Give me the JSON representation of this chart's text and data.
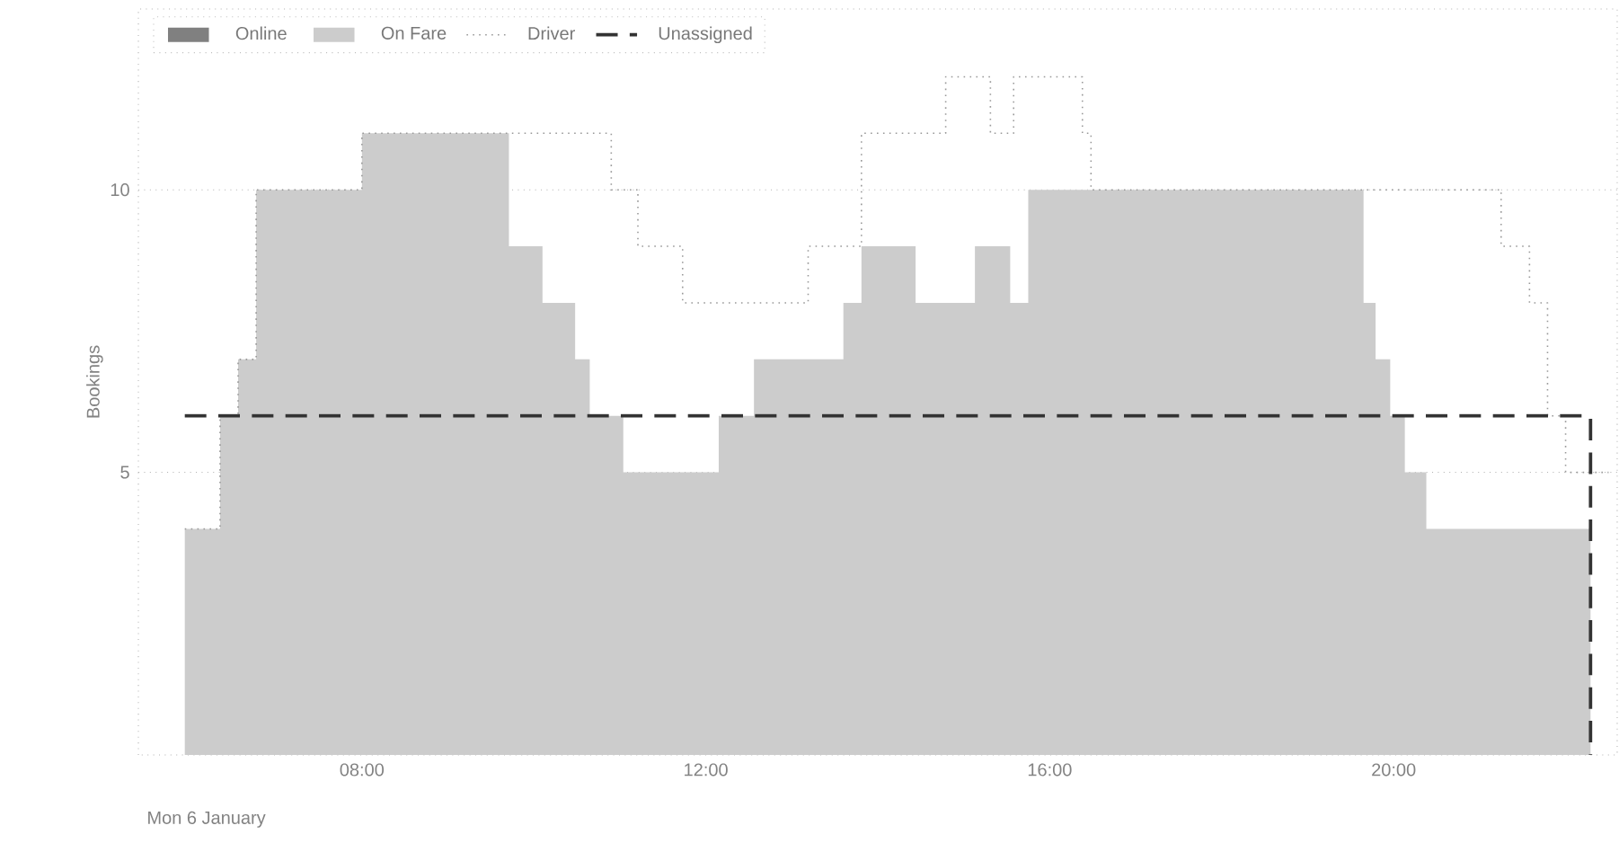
{
  "chart_data": {
    "type": "step",
    "xlabel": "Mon 6 January",
    "ylabel": "Bookings",
    "xlim": [
      5.4,
      22.6
    ],
    "ylim": [
      0,
      13.2
    ],
    "xticks": [
      {
        "value": 8,
        "label": "08:00"
      },
      {
        "value": 12,
        "label": "12:00"
      },
      {
        "value": 16,
        "label": "16:00"
      },
      {
        "value": 20,
        "label": "20:00"
      }
    ],
    "yticks": [
      5,
      10
    ],
    "grid": "y",
    "legend": "top left",
    "series": [
      {
        "name": "Online",
        "type": "area",
        "color": "#808080"
      },
      {
        "name": "On Fare",
        "type": "area",
        "color": "#cccccc",
        "x": [
          5.94,
          6.35,
          6.56,
          6.77,
          8.0,
          9.71,
          10.1,
          10.48,
          10.65,
          11.04,
          12.15,
          12.56,
          13.6,
          13.81,
          14.44,
          15.13,
          15.54,
          15.75,
          19.65,
          19.79,
          19.96,
          20.13,
          20.38,
          22.29
        ],
        "values": [
          4,
          6,
          7,
          10,
          11,
          9,
          8,
          7,
          6,
          5,
          6,
          7,
          8,
          9,
          8,
          9,
          8,
          10,
          8,
          7,
          6,
          5,
          4,
          4
        ]
      },
      {
        "name": "Driver",
        "color": "#999999",
        "line_style": "dotted",
        "x": [
          5.94,
          6.35,
          6.56,
          6.77,
          8.0,
          10.9,
          11.21,
          11.73,
          13.19,
          13.81,
          14.79,
          15.31,
          15.58,
          16.38,
          16.48,
          21.25,
          21.58,
          21.79,
          22.0,
          22.5
        ],
        "values": [
          4,
          6,
          7,
          10,
          11,
          10,
          9,
          8,
          9,
          11,
          12,
          11,
          12,
          11,
          10,
          9,
          8,
          6,
          5,
          5
        ]
      },
      {
        "name": "Unassigned",
        "color": "#333333",
        "line_style": "dashed",
        "x": [
          5.94,
          22.28,
          22.29
        ],
        "values": [
          6,
          6,
          0
        ]
      }
    ]
  }
}
